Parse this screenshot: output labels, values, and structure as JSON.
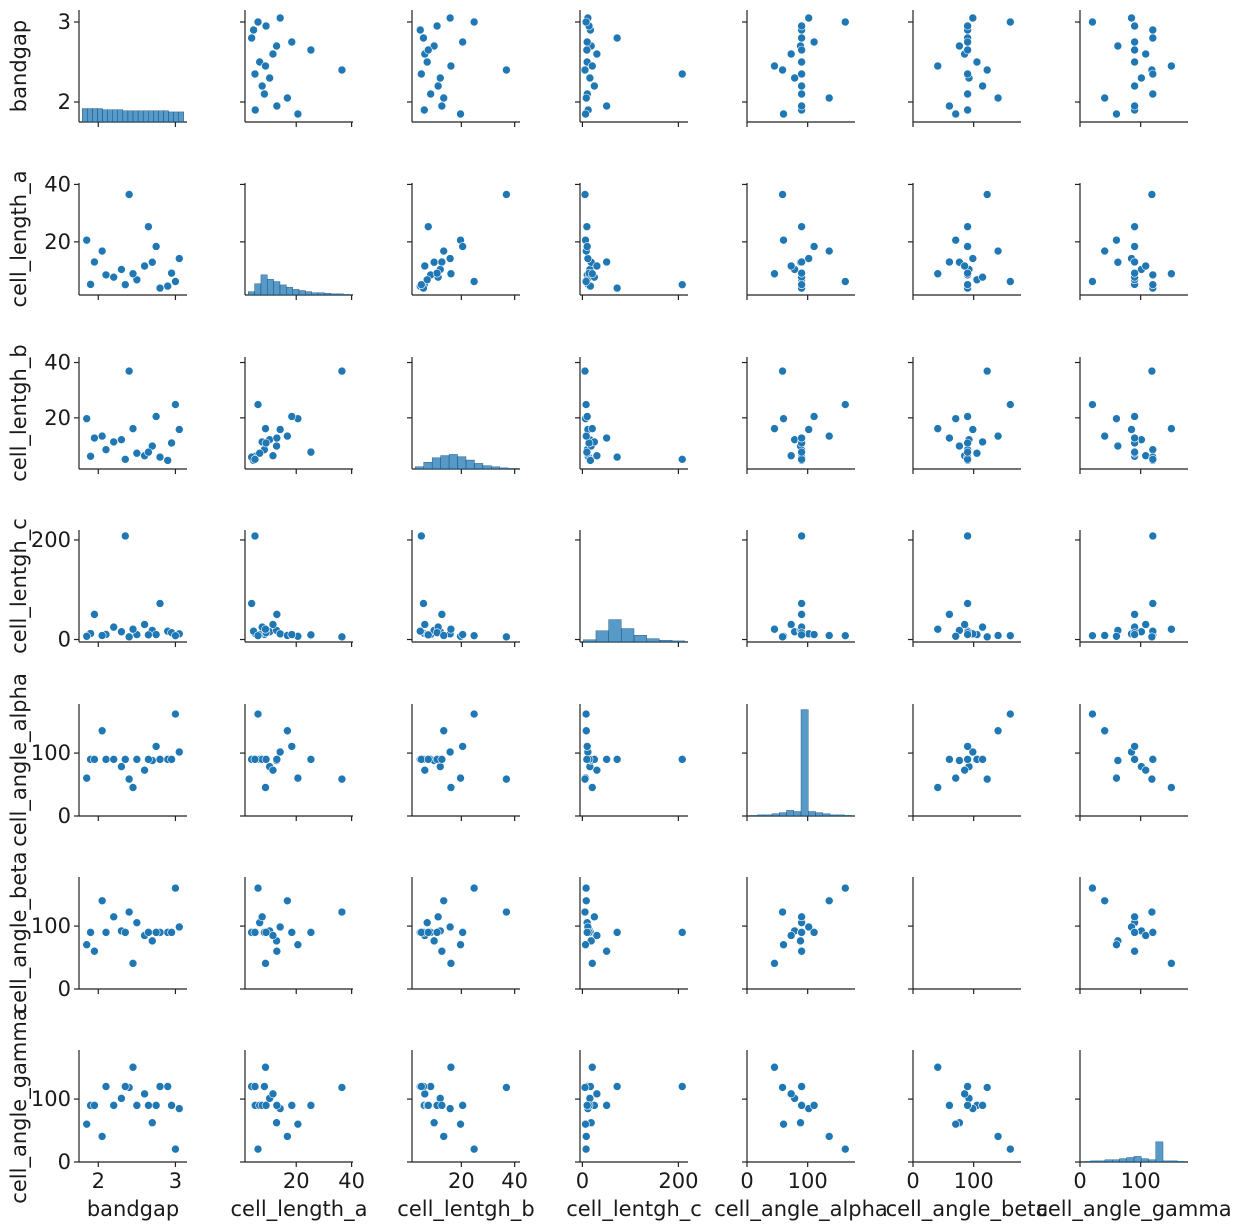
{
  "chart_data": {
    "type": "scatter",
    "subtype": "pairplot",
    "variables": [
      "bandgap",
      "cell_length_a",
      "cell_lentgh_b",
      "cell_lentgh_c",
      "cell_angle_alpha",
      "cell_angle_beta",
      "cell_angle_gamma"
    ],
    "ranges": {
      "bandgap": [
        1.75,
        3.15
      ],
      "cell_length_a": [
        1.5,
        40.5
      ],
      "cell_lentgh_b": [
        1.5,
        42
      ],
      "cell_lentgh_c": [
        -5,
        220
      ],
      "cell_angle_alpha": [
        0,
        178
      ],
      "cell_angle_beta": [
        0,
        178
      ],
      "cell_angle_gamma": [
        0,
        178
      ]
    },
    "ticks": {
      "bandgap": [
        {
          "v": 2,
          "label": "2"
        },
        {
          "v": 3,
          "label": "3"
        }
      ],
      "cell_length_a": [
        {
          "v": 20,
          "label": "20"
        },
        {
          "v": 40,
          "label": "40"
        }
      ],
      "cell_lentgh_b": [
        {
          "v": 20,
          "label": "20"
        },
        {
          "v": 40,
          "label": "40"
        }
      ],
      "cell_lentgh_c": [
        {
          "v": 0,
          "label": "0"
        },
        {
          "v": 200,
          "label": "200"
        }
      ],
      "cell_angle_alpha": [
        {
          "v": 0,
          "label": "0"
        },
        {
          "v": 100,
          "label": "100"
        }
      ],
      "cell_angle_beta": [
        {
          "v": 0,
          "label": "0"
        },
        {
          "v": 100,
          "label": "100"
        }
      ],
      "cell_angle_gamma": [
        {
          "v": 0,
          "label": "0"
        },
        {
          "v": 100,
          "label": "100"
        }
      ]
    },
    "diag": "histogram",
    "empty_panels": [
      [
        5,
        5
      ]
    ],
    "color": "#1f77b4",
    "samples": [
      [
        1.9,
        5.2,
        6.1,
        12.0,
        90.0,
        90.0,
        90.0
      ],
      [
        2.1,
        8.5,
        8.5,
        10.2,
        90.0,
        90.0,
        120.0
      ],
      [
        2.3,
        10.4,
        12.1,
        15.6,
        78.5,
        92.3,
        101.2
      ],
      [
        2.5,
        6.8,
        7.2,
        9.9,
        90.0,
        105.4,
        90.0
      ],
      [
        2.7,
        12.9,
        9.8,
        18.3,
        88.2,
        76.5,
        62.4
      ],
      [
        2.9,
        4.6,
        4.6,
        16.7,
        90.0,
        90.0,
        120.0
      ],
      [
        3.05,
        14.2,
        15.8,
        11.4,
        101.7,
        98.6,
        84.9
      ],
      [
        1.85,
        20.6,
        19.7,
        6.5,
        60.2,
        70.4,
        60.1
      ],
      [
        2.2,
        7.7,
        11.3,
        24.9,
        90.0,
        114.7,
        90.0
      ],
      [
        2.6,
        11.6,
        6.3,
        30.2,
        72.8,
        85.1,
        108.3
      ],
      [
        2.95,
        9.1,
        10.9,
        13.8,
        90.0,
        90.0,
        90.0
      ],
      [
        2.4,
        36.5,
        36.9,
        5.4,
        58.6,
        122.3,
        118.5
      ],
      [
        2.8,
        3.9,
        5.8,
        72.4,
        90.0,
        90.0,
        120.0
      ],
      [
        2.35,
        5.1,
        5.0,
        208.0,
        90.0,
        90.0,
        120.0
      ],
      [
        2.05,
        16.8,
        13.4,
        8.1,
        135.5,
        140.2,
        40.7
      ],
      [
        2.65,
        25.3,
        7.6,
        9.3,
        90.0,
        90.0,
        90.0
      ],
      [
        3.0,
        6.2,
        24.8,
        7.7,
        162.0,
        160.4,
        20.5
      ],
      [
        1.95,
        13.0,
        12.7,
        50.5,
        90.0,
        60.0,
        90.0
      ],
      [
        2.45,
        8.9,
        16.1,
        20.6,
        45.3,
        40.8,
        150.6
      ],
      [
        2.75,
        18.4,
        20.5,
        10.0,
        110.6,
        90.0,
        90.0
      ]
    ],
    "hist_heights": {
      "bandgap": [
        0.12,
        0.12,
        0.12,
        0.12,
        0.11,
        0.11,
        0.11,
        0.11,
        0.1,
        0.1,
        0.1,
        0.1,
        0.1,
        0.1,
        0.1,
        0.1,
        0.1,
        0.09,
        0.09,
        0.09
      ],
      "cell_length_a": [
        0.03,
        0.1,
        0.18,
        0.14,
        0.12,
        0.09,
        0.07,
        0.05,
        0.04,
        0.03,
        0.02,
        0.02,
        0.015,
        0.01,
        0.01,
        0.005
      ],
      "cell_lentgh_b": [
        0.02,
        0.06,
        0.1,
        0.12,
        0.13,
        0.11,
        0.08,
        0.05,
        0.03,
        0.02,
        0.01,
        0.005
      ],
      "cell_lentgh_c": [
        0.02,
        0.1,
        0.2,
        0.12,
        0.06,
        0.03,
        0.015,
        0.01
      ],
      "cell_angle_alpha": [
        0.005,
        0.01,
        0.01,
        0.02,
        0.03,
        0.05,
        0.04,
        0.95,
        0.04,
        0.03,
        0.02,
        0.01,
        0.01,
        0.005
      ],
      "cell_angle_gamma": [
        0.005,
        0.01,
        0.01,
        0.02,
        0.02,
        0.03,
        0.04,
        0.05,
        0.03,
        0.02,
        0.18,
        0.01,
        0.01,
        0.005
      ]
    }
  }
}
